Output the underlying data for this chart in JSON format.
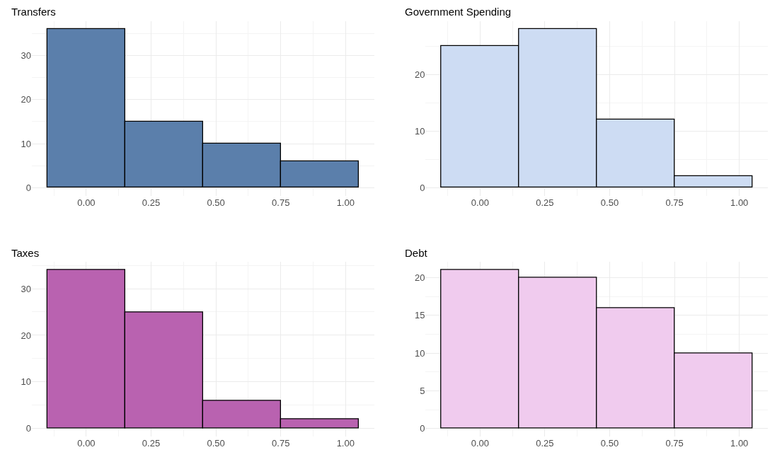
{
  "chart_data": [
    {
      "type": "histogram",
      "title": "Transfers",
      "bins": [
        -0.15,
        0.15,
        0.45,
        0.75,
        1.05
      ],
      "values": [
        36,
        15,
        10,
        6
      ],
      "color": "#5b7fab",
      "xlim": [
        -0.21,
        1.11
      ],
      "ylim": [
        -1.8,
        37.8
      ],
      "xticks": [
        {
          "value": 0,
          "label": "0.00"
        },
        {
          "value": 0.25,
          "label": "0.25"
        },
        {
          "value": 0.5,
          "label": "0.50"
        },
        {
          "value": 0.75,
          "label": "0.75"
        },
        {
          "value": 1,
          "label": "1.00"
        }
      ],
      "yticks": [
        0,
        10,
        20,
        30
      ],
      "grid": true
    },
    {
      "type": "histogram",
      "title": "Government Spending",
      "bins": [
        -0.15,
        0.15,
        0.45,
        0.75,
        1.05
      ],
      "values": [
        25,
        28,
        12,
        2
      ],
      "color": "#cddcf3",
      "xlim": [
        -0.21,
        1.11
      ],
      "ylim": [
        -1.4,
        29.4
      ],
      "xticks": [
        {
          "value": 0,
          "label": "0.00"
        },
        {
          "value": 0.25,
          "label": "0.25"
        },
        {
          "value": 0.5,
          "label": "0.50"
        },
        {
          "value": 0.75,
          "label": "0.75"
        },
        {
          "value": 1,
          "label": "1.00"
        }
      ],
      "yticks": [
        0,
        10,
        20
      ],
      "grid": true
    },
    {
      "type": "histogram",
      "title": "Taxes",
      "bins": [
        -0.15,
        0.15,
        0.45,
        0.75,
        1.05
      ],
      "values": [
        34,
        25,
        6,
        2
      ],
      "color": "#b962b0",
      "xlim": [
        -0.21,
        1.11
      ],
      "ylim": [
        -1.7,
        35.7
      ],
      "xticks": [
        {
          "value": 0,
          "label": "0.00"
        },
        {
          "value": 0.25,
          "label": "0.25"
        },
        {
          "value": 0.5,
          "label": "0.50"
        },
        {
          "value": 0.75,
          "label": "0.75"
        },
        {
          "value": 1,
          "label": "1.00"
        }
      ],
      "yticks": [
        0,
        10,
        20,
        30
      ],
      "grid": true
    },
    {
      "type": "histogram",
      "title": "Debt",
      "bins": [
        -0.15,
        0.15,
        0.45,
        0.75,
        1.05
      ],
      "values": [
        21,
        20,
        16,
        10
      ],
      "color": "#f0cbee",
      "xlim": [
        -0.21,
        1.11
      ],
      "ylim": [
        -1.05,
        22.05
      ],
      "xticks": [
        {
          "value": 0,
          "label": "0.00"
        },
        {
          "value": 0.25,
          "label": "0.25"
        },
        {
          "value": 0.5,
          "label": "0.50"
        },
        {
          "value": 0.75,
          "label": "0.75"
        },
        {
          "value": 1,
          "label": "1.00"
        }
      ],
      "yticks": [
        0,
        5,
        10,
        15,
        20
      ],
      "grid": true
    }
  ]
}
